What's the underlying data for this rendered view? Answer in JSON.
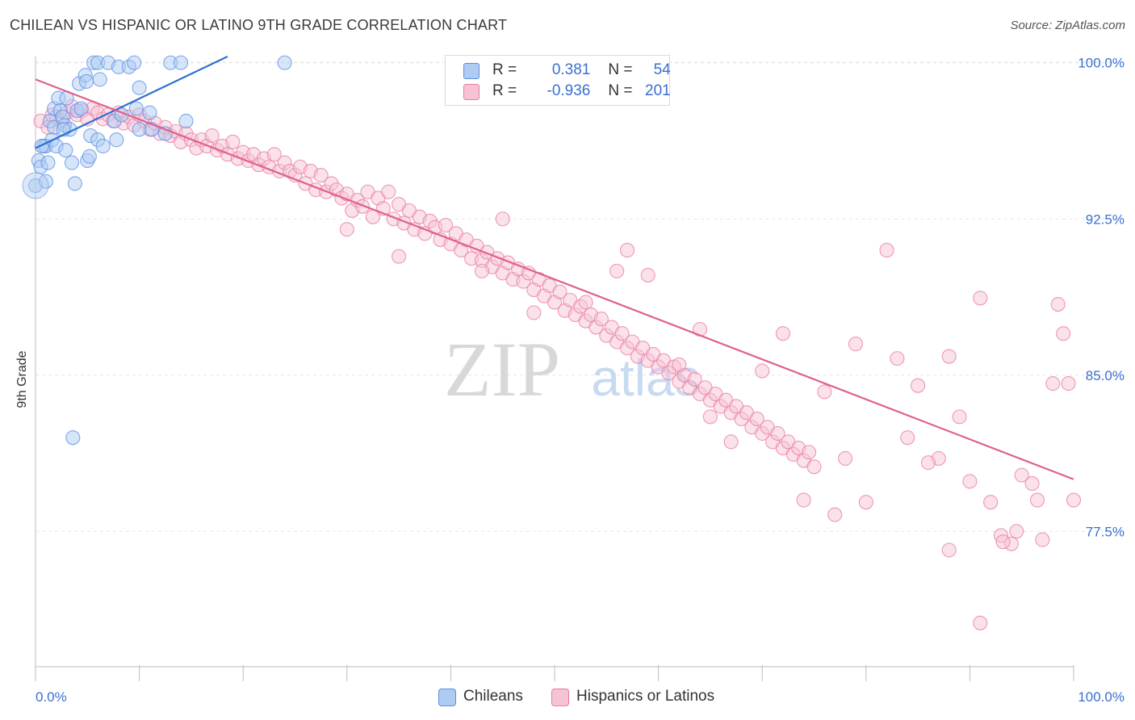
{
  "title": "CHILEAN VS HISPANIC OR LATINO 9TH GRADE CORRELATION CHART",
  "source": "Source: ZipAtlas.com",
  "colors": {
    "blue": "#5b8ee6",
    "blue_fill": "#aecbf2",
    "blue_line": "#2e6fd0",
    "pink": "#e87aa0",
    "pink_fill": "#f6c3d5",
    "pink_line": "#e0608e",
    "tick_label": "#3a6fd1",
    "grid": "#e6e6e6"
  },
  "legend": {
    "rows": [
      {
        "r_label": "R = ",
        "r_value": "0.381",
        "n_label": "N = ",
        "n_value": "54"
      },
      {
        "r_label": "R = ",
        "r_value": "-0.936",
        "n_label": "N = ",
        "n_value": "201"
      }
    ]
  },
  "bottom_legend": [
    "Chileans",
    "Hispanics or Latinos"
  ],
  "watermark": {
    "zip": "ZIP",
    "atlas": "atlas"
  },
  "chart_data": {
    "type": "scatter",
    "title": "CHILEAN VS HISPANIC OR LATINO 9TH GRADE CORRELATION CHART",
    "xlabel": "",
    "ylabel": "9th Grade",
    "xlim": [
      0,
      100
    ],
    "ylim": [
      71.0,
      100.3
    ],
    "x_tick_labels": [
      "0.0%",
      "100.0%"
    ],
    "y_ticks": [
      100.0,
      92.5,
      85.0,
      77.5
    ],
    "y_tick_labels": [
      "100.0%",
      "92.5%",
      "85.0%",
      "77.5%"
    ],
    "grid": true,
    "legend_position": "top-center",
    "series": [
      {
        "name": "Chileans",
        "color": "#5b8ee6",
        "trend": {
          "x": [
            0,
            18.5
          ],
          "y": [
            95.9,
            100.3
          ]
        },
        "points": [
          [
            0.0,
            94.1
          ],
          [
            0.3,
            95.3
          ],
          [
            0.5,
            95.0
          ],
          [
            0.8,
            96.0
          ],
          [
            1.0,
            96.0
          ],
          [
            1.0,
            94.3
          ],
          [
            1.2,
            95.2
          ],
          [
            1.4,
            97.2
          ],
          [
            1.6,
            96.3
          ],
          [
            1.8,
            97.8
          ],
          [
            1.8,
            96.9
          ],
          [
            2.0,
            96.0
          ],
          [
            2.2,
            98.3
          ],
          [
            2.4,
            97.7
          ],
          [
            2.6,
            97.4
          ],
          [
            2.8,
            97.0
          ],
          [
            2.9,
            95.8
          ],
          [
            3.0,
            98.3
          ],
          [
            3.3,
            96.8
          ],
          [
            3.5,
            95.2
          ],
          [
            3.8,
            94.2
          ],
          [
            4.0,
            97.7
          ],
          [
            4.2,
            99.0
          ],
          [
            4.4,
            97.8
          ],
          [
            4.8,
            99.4
          ],
          [
            4.9,
            99.1
          ],
          [
            5.0,
            95.3
          ],
          [
            5.2,
            95.5
          ],
          [
            5.3,
            96.5
          ],
          [
            5.6,
            100.0
          ],
          [
            6.0,
            96.3
          ],
          [
            6.0,
            100.0
          ],
          [
            6.2,
            99.2
          ],
          [
            6.5,
            96.0
          ],
          [
            7.0,
            100.0
          ],
          [
            7.6,
            97.2
          ],
          [
            7.8,
            96.3
          ],
          [
            8.0,
            99.8
          ],
          [
            8.3,
            97.5
          ],
          [
            9.0,
            99.8
          ],
          [
            9.5,
            100.0
          ],
          [
            10.0,
            98.8
          ],
          [
            9.7,
            97.8
          ],
          [
            10.0,
            96.8
          ],
          [
            11.2,
            96.8
          ],
          [
            12.5,
            96.6
          ],
          [
            13.0,
            100.0
          ],
          [
            14.0,
            100.0
          ],
          [
            14.5,
            97.2
          ],
          [
            24.0,
            100.0
          ],
          [
            3.6,
            82.0
          ],
          [
            0.6,
            96.0
          ],
          [
            2.7,
            96.8
          ],
          [
            11.0,
            97.6
          ]
        ]
      },
      {
        "name": "Hispanics or Latinos",
        "color": "#e87aa0",
        "trend": {
          "x": [
            0,
            100
          ],
          "y": [
            99.2,
            80.0
          ]
        },
        "points": [
          [
            0.5,
            97.2
          ],
          [
            1.2,
            96.9
          ],
          [
            1.6,
            97.5
          ],
          [
            2.0,
            97.4
          ],
          [
            2.5,
            97.2
          ],
          [
            3.0,
            97.6
          ],
          [
            3.5,
            97.9
          ],
          [
            4.0,
            97.5
          ],
          [
            4.5,
            97.7
          ],
          [
            5.0,
            97.3
          ],
          [
            5.5,
            97.8
          ],
          [
            6.0,
            97.6
          ],
          [
            6.5,
            97.3
          ],
          [
            7.0,
            97.5
          ],
          [
            7.5,
            97.2
          ],
          [
            8.0,
            97.6
          ],
          [
            8.5,
            97.1
          ],
          [
            9.0,
            97.4
          ],
          [
            9.5,
            97.0
          ],
          [
            10.0,
            97.5
          ],
          [
            10.5,
            97.2
          ],
          [
            11.0,
            96.8
          ],
          [
            11.5,
            97.1
          ],
          [
            12.0,
            96.6
          ],
          [
            12.5,
            96.9
          ],
          [
            13.0,
            96.5
          ],
          [
            13.5,
            96.7
          ],
          [
            14.0,
            96.2
          ],
          [
            14.5,
            96.6
          ],
          [
            15.0,
            96.3
          ],
          [
            15.5,
            95.9
          ],
          [
            16.0,
            96.3
          ],
          [
            16.5,
            96.0
          ],
          [
            17.0,
            96.5
          ],
          [
            17.5,
            95.8
          ],
          [
            18.0,
            96.0
          ],
          [
            18.5,
            95.6
          ],
          [
            19.0,
            96.2
          ],
          [
            19.5,
            95.4
          ],
          [
            20.0,
            95.7
          ],
          [
            20.5,
            95.3
          ],
          [
            21.0,
            95.6
          ],
          [
            21.5,
            95.1
          ],
          [
            22.0,
            95.4
          ],
          [
            22.5,
            95.0
          ],
          [
            23.0,
            95.6
          ],
          [
            23.5,
            94.8
          ],
          [
            24.0,
            95.2
          ],
          [
            24.5,
            94.8
          ],
          [
            25.0,
            94.6
          ],
          [
            25.5,
            95.0
          ],
          [
            26.0,
            94.2
          ],
          [
            26.5,
            94.8
          ],
          [
            27.0,
            93.9
          ],
          [
            27.5,
            94.6
          ],
          [
            28.0,
            93.8
          ],
          [
            28.5,
            94.2
          ],
          [
            29.0,
            93.9
          ],
          [
            29.5,
            93.5
          ],
          [
            30.0,
            93.7
          ],
          [
            30.5,
            92.9
          ],
          [
            31.0,
            93.4
          ],
          [
            31.5,
            93.1
          ],
          [
            32.0,
            93.8
          ],
          [
            32.5,
            92.6
          ],
          [
            33.0,
            93.5
          ],
          [
            33.5,
            93.0
          ],
          [
            34.0,
            93.8
          ],
          [
            34.5,
            92.5
          ],
          [
            35.0,
            93.2
          ],
          [
            35.5,
            92.3
          ],
          [
            36.0,
            92.9
          ],
          [
            36.5,
            92.0
          ],
          [
            37.0,
            92.6
          ],
          [
            37.5,
            91.8
          ],
          [
            38.0,
            92.4
          ],
          [
            38.5,
            92.1
          ],
          [
            39.0,
            91.5
          ],
          [
            39.5,
            92.2
          ],
          [
            40.0,
            91.3
          ],
          [
            40.5,
            91.8
          ],
          [
            41.0,
            91.0
          ],
          [
            41.5,
            91.5
          ],
          [
            42.0,
            90.6
          ],
          [
            42.5,
            91.2
          ],
          [
            43.0,
            90.5
          ],
          [
            43.5,
            90.9
          ],
          [
            44.0,
            90.2
          ],
          [
            44.5,
            90.6
          ],
          [
            45.0,
            89.9
          ],
          [
            45.5,
            90.4
          ],
          [
            46.0,
            89.6
          ],
          [
            46.5,
            90.1
          ],
          [
            47.0,
            89.5
          ],
          [
            47.5,
            89.9
          ],
          [
            48.0,
            89.1
          ],
          [
            48.5,
            89.6
          ],
          [
            49.0,
            88.8
          ],
          [
            49.5,
            89.3
          ],
          [
            50.0,
            88.5
          ],
          [
            50.5,
            89.0
          ],
          [
            51.0,
            88.1
          ],
          [
            51.5,
            88.6
          ],
          [
            52.0,
            87.9
          ],
          [
            52.5,
            88.3
          ],
          [
            53.0,
            87.6
          ],
          [
            53.5,
            87.9
          ],
          [
            54.0,
            87.3
          ],
          [
            54.5,
            87.7
          ],
          [
            55.0,
            86.9
          ],
          [
            55.5,
            87.3
          ],
          [
            56.0,
            86.6
          ],
          [
            56.5,
            87.0
          ],
          [
            57.0,
            86.3
          ],
          [
            57.5,
            86.6
          ],
          [
            58.0,
            85.9
          ],
          [
            58.5,
            86.3
          ],
          [
            59.0,
            85.7
          ],
          [
            59.5,
            86.0
          ],
          [
            60.0,
            85.4
          ],
          [
            60.5,
            85.7
          ],
          [
            61.0,
            85.1
          ],
          [
            61.5,
            85.4
          ],
          [
            62.0,
            84.7
          ],
          [
            62.5,
            85.0
          ],
          [
            63.0,
            84.4
          ],
          [
            63.5,
            84.8
          ],
          [
            64.0,
            84.1
          ],
          [
            64.5,
            84.4
          ],
          [
            65.0,
            83.8
          ],
          [
            65.5,
            84.1
          ],
          [
            66.0,
            83.5
          ],
          [
            66.5,
            83.8
          ],
          [
            67.0,
            83.2
          ],
          [
            67.5,
            83.5
          ],
          [
            68.0,
            82.9
          ],
          [
            68.5,
            83.2
          ],
          [
            69.0,
            82.5
          ],
          [
            69.5,
            82.9
          ],
          [
            70.0,
            82.2
          ],
          [
            70.5,
            82.5
          ],
          [
            71.0,
            81.8
          ],
          [
            71.5,
            82.2
          ],
          [
            72.0,
            81.5
          ],
          [
            72.5,
            81.8
          ],
          [
            73.0,
            81.2
          ],
          [
            73.5,
            81.5
          ],
          [
            74.0,
            80.9
          ],
          [
            74.5,
            81.3
          ],
          [
            75.0,
            80.6
          ],
          [
            30.0,
            92.0
          ],
          [
            35.0,
            90.7
          ],
          [
            43.0,
            90.0
          ],
          [
            45.0,
            92.5
          ],
          [
            48.0,
            88.0
          ],
          [
            53.0,
            88.5
          ],
          [
            56.0,
            90.0
          ],
          [
            57.0,
            91.0
          ],
          [
            59.0,
            89.8
          ],
          [
            62.0,
            85.5
          ],
          [
            64.0,
            87.2
          ],
          [
            65.0,
            83.0
          ],
          [
            67.0,
            81.8
          ],
          [
            70.0,
            85.2
          ],
          [
            72.0,
            87.0
          ],
          [
            74.0,
            79.0
          ],
          [
            76.0,
            84.2
          ],
          [
            77.0,
            78.3
          ],
          [
            78.0,
            81.0
          ],
          [
            79.0,
            86.5
          ],
          [
            80.0,
            78.9
          ],
          [
            82.0,
            91.0
          ],
          [
            83.0,
            85.8
          ],
          [
            84.0,
            82.0
          ],
          [
            85.0,
            84.5
          ],
          [
            87.0,
            81.0
          ],
          [
            88.0,
            85.9
          ],
          [
            89.0,
            83.0
          ],
          [
            90.0,
            79.9
          ],
          [
            91.0,
            88.7
          ],
          [
            92.0,
            78.9
          ],
          [
            93.0,
            77.3
          ],
          [
            94.0,
            76.9
          ],
          [
            95.0,
            80.2
          ],
          [
            96.0,
            79.8
          ],
          [
            97.0,
            77.1
          ],
          [
            98.0,
            84.6
          ],
          [
            98.5,
            88.4
          ],
          [
            99.0,
            87.0
          ],
          [
            99.5,
            84.6
          ],
          [
            100.0,
            79.0
          ],
          [
            91.0,
            73.1
          ],
          [
            88.0,
            76.6
          ],
          [
            94.5,
            77.5
          ],
          [
            96.5,
            79.0
          ],
          [
            93.2,
            77.0
          ],
          [
            86.0,
            80.8
          ]
        ]
      }
    ]
  }
}
